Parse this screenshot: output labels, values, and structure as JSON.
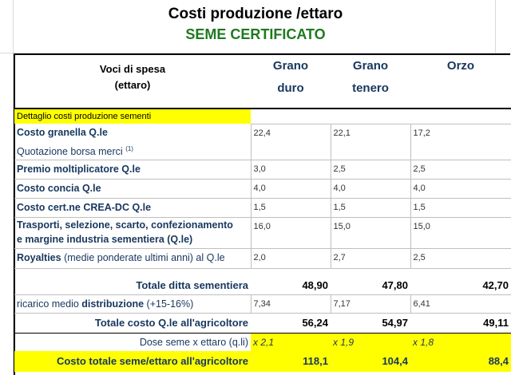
{
  "title": "Costi produzione /ettaro",
  "subtitle": "SEME CERTIFICATO",
  "header": {
    "voci_line1": "Voci di spesa",
    "voci_line2": "(ettaro)",
    "columns": [
      {
        "line1": "Grano",
        "line2": "duro"
      },
      {
        "line1": "Grano",
        "line2": "tenero"
      },
      {
        "line1": "Orzo",
        "line2": ""
      }
    ]
  },
  "section_label": "Dettaglio costi produzione sementi",
  "rows": [
    {
      "label": "Costo granella Q.le",
      "sub": "Quotazione borsa merci",
      "sup": "(1)",
      "values": [
        "22,4",
        "22,1",
        "17,2"
      ]
    },
    {
      "label": "Premio moltiplicatore Q.le",
      "values": [
        "3,0",
        "2,5",
        "2,5"
      ]
    },
    {
      "label": "Costo concia Q.le",
      "values": [
        "4,0",
        "4,0",
        "4,0"
      ]
    },
    {
      "label": "Costo cert.ne CREA-DC  Q.le",
      "values": [
        "1,5",
        "1,5",
        "1,5"
      ]
    },
    {
      "label": "Trasporti, selezione, scarto, confezionamento",
      "label2": "e margine industria sementiera (Q.le)",
      "values": [
        "16,0",
        "15,0",
        "15,0"
      ]
    },
    {
      "label": "Royalties",
      "label_rest": " (medie ponderate ultimi anni) al Q.le",
      "values": [
        "2,0",
        "2,7",
        "2,5"
      ]
    }
  ],
  "totale_ditta": {
    "label": "Totale ditta sementiera",
    "values": [
      "48,90",
      "47,80",
      "42,70"
    ]
  },
  "ricarico": {
    "label_a": "ricarico medio ",
    "label_b": "distribuzione",
    "label_c": " (+15-16%)",
    "values": [
      "7,34",
      "7,17",
      "6,41"
    ]
  },
  "totale_agricoltore": {
    "label": "Totale costo Q.le all'agricoltore",
    "values": [
      "56,24",
      "54,97",
      "49,11"
    ]
  },
  "dose": {
    "label": "Dose seme x ettaro (q.li)",
    "values": [
      "x 2,1",
      "x 1,9",
      "x 1,8"
    ]
  },
  "costo_totale": {
    "label": "Costo totale seme/ettaro all'agricoltore",
    "values": [
      "118,1",
      "104,4",
      "88,4"
    ]
  },
  "colors": {
    "accent_text": "#17375e",
    "highlight": "#ffff00",
    "subtitle": "#1f7a1f"
  }
}
